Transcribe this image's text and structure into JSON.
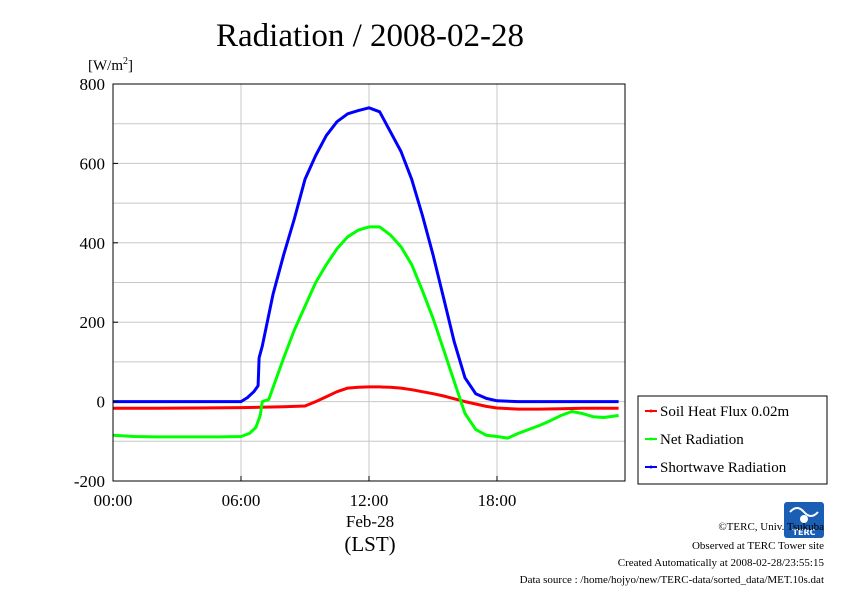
{
  "chart_data": {
    "type": "line",
    "title": "Radiation / 2008-02-28",
    "ylabel_unit": "[W/m",
    "ylabel_sup": "2",
    "ylabel_close": "]",
    "ylim": [
      -200,
      800
    ],
    "yticks": [
      "800",
      "600",
      "400",
      "200",
      "0",
      "-200"
    ],
    "xlim": [
      0,
      24
    ],
    "xticks": [
      "00:00",
      "06:00",
      "12:00",
      "18:00"
    ],
    "date_label": "Feb-28",
    "xlabel": "(LST)",
    "grid": true,
    "legend_position": "right",
    "series": [
      {
        "name": "Soil Heat Flux 0.02m",
        "color": "#ff0000",
        "points": [
          [
            0,
            -17
          ],
          [
            2,
            -17
          ],
          [
            4,
            -16
          ],
          [
            6,
            -15
          ],
          [
            8,
            -13
          ],
          [
            9,
            -11
          ],
          [
            9.5,
            0
          ],
          [
            10,
            12
          ],
          [
            10.5,
            25
          ],
          [
            11,
            34
          ],
          [
            11.5,
            36
          ],
          [
            12,
            37
          ],
          [
            12.5,
            37
          ],
          [
            13,
            36
          ],
          [
            13.5,
            34
          ],
          [
            14,
            30
          ],
          [
            14.5,
            25
          ],
          [
            15,
            20
          ],
          [
            15.5,
            14
          ],
          [
            16,
            7
          ],
          [
            16.5,
            0
          ],
          [
            17,
            -6
          ],
          [
            17.5,
            -12
          ],
          [
            18,
            -16
          ],
          [
            19,
            -19
          ],
          [
            20,
            -19
          ],
          [
            21,
            -18
          ],
          [
            22,
            -17
          ],
          [
            23,
            -17
          ],
          [
            23.7,
            -17
          ]
        ]
      },
      {
        "name": "Net Radiation",
        "color": "#00ff00",
        "points": [
          [
            0,
            -85
          ],
          [
            1,
            -88
          ],
          [
            2,
            -89
          ],
          [
            3,
            -89
          ],
          [
            4,
            -89
          ],
          [
            5,
            -89
          ],
          [
            6,
            -88
          ],
          [
            6.4,
            -80
          ],
          [
            6.7,
            -65
          ],
          [
            6.9,
            -35
          ],
          [
            7,
            0
          ],
          [
            7.3,
            5
          ],
          [
            7.6,
            50
          ],
          [
            8,
            110
          ],
          [
            8.5,
            180
          ],
          [
            9,
            240
          ],
          [
            9.5,
            300
          ],
          [
            10,
            345
          ],
          [
            10.5,
            385
          ],
          [
            11,
            415
          ],
          [
            11.5,
            432
          ],
          [
            12,
            440
          ],
          [
            12.5,
            440
          ],
          [
            13,
            420
          ],
          [
            13.5,
            390
          ],
          [
            14,
            345
          ],
          [
            14.5,
            280
          ],
          [
            15,
            210
          ],
          [
            15.5,
            130
          ],
          [
            16,
            50
          ],
          [
            16.5,
            -30
          ],
          [
            17,
            -70
          ],
          [
            17.5,
            -85
          ],
          [
            18,
            -88
          ],
          [
            18.5,
            -92
          ],
          [
            19,
            -80
          ],
          [
            19.5,
            -70
          ],
          [
            20,
            -60
          ],
          [
            20.5,
            -48
          ],
          [
            21,
            -35
          ],
          [
            21.5,
            -25
          ],
          [
            22,
            -30
          ],
          [
            22.5,
            -38
          ],
          [
            23,
            -40
          ],
          [
            23.7,
            -35
          ]
        ]
      },
      {
        "name": "Shortwave Radiation",
        "color": "#0000ff",
        "points": [
          [
            0,
            0
          ],
          [
            3,
            0
          ],
          [
            5,
            0
          ],
          [
            6,
            0
          ],
          [
            6.3,
            10
          ],
          [
            6.6,
            25
          ],
          [
            6.8,
            40
          ],
          [
            6.85,
            110
          ],
          [
            7,
            140
          ],
          [
            7.5,
            270
          ],
          [
            8,
            370
          ],
          [
            8.5,
            460
          ],
          [
            9,
            560
          ],
          [
            9.5,
            620
          ],
          [
            10,
            670
          ],
          [
            10.5,
            705
          ],
          [
            11,
            725
          ],
          [
            11.5,
            733
          ],
          [
            12,
            740
          ],
          [
            12.5,
            730
          ],
          [
            13,
            680
          ],
          [
            13.5,
            630
          ],
          [
            14,
            560
          ],
          [
            14.5,
            470
          ],
          [
            15,
            370
          ],
          [
            15.5,
            260
          ],
          [
            16,
            150
          ],
          [
            16.5,
            60
          ],
          [
            17,
            20
          ],
          [
            17.5,
            8
          ],
          [
            18,
            2
          ],
          [
            19,
            0
          ],
          [
            20,
            0
          ],
          [
            21,
            0
          ],
          [
            22,
            0
          ],
          [
            23.7,
            0
          ]
        ]
      }
    ]
  },
  "footer": {
    "copyright": "©TERC, Univ. Tsukuba",
    "observed": "Observed at TERC Tower site",
    "created": "Created Automatically at 2008-02-28/23:55:15",
    "source": "Data source : /home/hojyo/new/TERC-data/sorted_data/MET.10s.dat"
  },
  "logo": {
    "text": "TERC",
    "color": "#1a5fb4"
  }
}
